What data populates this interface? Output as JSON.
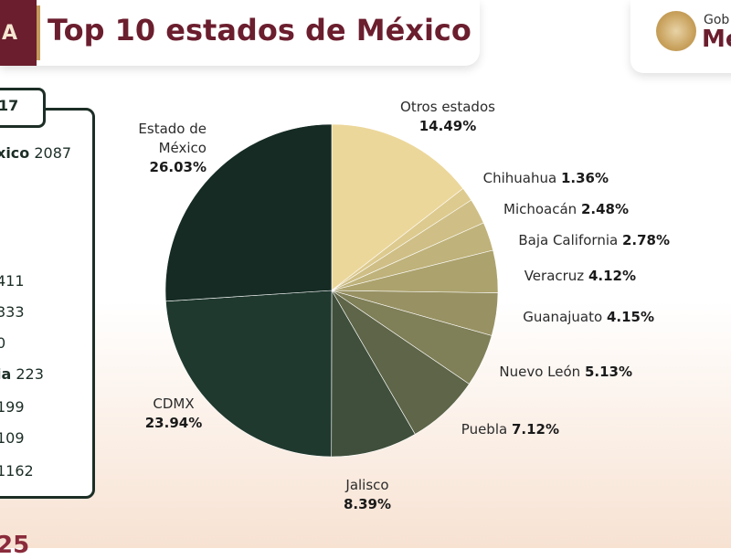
{
  "header": {
    "logo_text": "A",
    "title": "Top 10 estados de México"
  },
  "gov": {
    "line1": "Gob",
    "line2": "Mé"
  },
  "side_panel": {
    "tab": "17",
    "rows": [
      {
        "name": "xico",
        "value": "2087"
      },
      {
        "name": "",
        "value": "411"
      },
      {
        "name": "",
        "value": "333"
      },
      {
        "name": "",
        "value": "0"
      },
      {
        "name": "ia",
        "value": "223"
      },
      {
        "name": "",
        "value": "199"
      },
      {
        "name": "",
        "value": "109"
      },
      {
        "name": "",
        "value": "1162"
      }
    ],
    "bottom_text": "25"
  },
  "chart_data": {
    "type": "pie",
    "start_angle_deg": 0,
    "direction": "clockwise",
    "slices": [
      {
        "name": "Otros estados",
        "pct_label": "14.49%",
        "value": 14.49,
        "color": "#ecd79b"
      },
      {
        "name": "Chihuahua",
        "pct_label": "1.36%",
        "value": 1.36,
        "color": "#ddca8e"
      },
      {
        "name": "Michoacán",
        "pct_label": "2.48%",
        "value": 2.48,
        "color": "#cfbf86"
      },
      {
        "name": "Baja California",
        "pct_label": "2.78%",
        "value": 2.78,
        "color": "#bfb27a"
      },
      {
        "name": "Veracruz",
        "pct_label": "4.12%",
        "value": 4.12,
        "color": "#aca26d"
      },
      {
        "name": "Guanajuato",
        "pct_label": "4.15%",
        "value": 4.15,
        "color": "#989163"
      },
      {
        "name": "Nuevo León",
        "pct_label": "5.13%",
        "value": 5.13,
        "color": "#7f7f58"
      },
      {
        "name": "Puebla",
        "pct_label": "7.12%",
        "value": 7.12,
        "color": "#5e6548"
      },
      {
        "name": "Jalisco",
        "pct_label": "8.39%",
        "value": 8.39,
        "color": "#3f4f3b"
      },
      {
        "name": "CDMX",
        "pct_label": "23.94%",
        "value": 23.94,
        "color": "#20392f"
      },
      {
        "name": "Estado de México",
        "name_lines": [
          "Estado de",
          "México"
        ],
        "pct_label": "26.03%",
        "value": 26.03,
        "color": "#152b24"
      }
    ]
  }
}
